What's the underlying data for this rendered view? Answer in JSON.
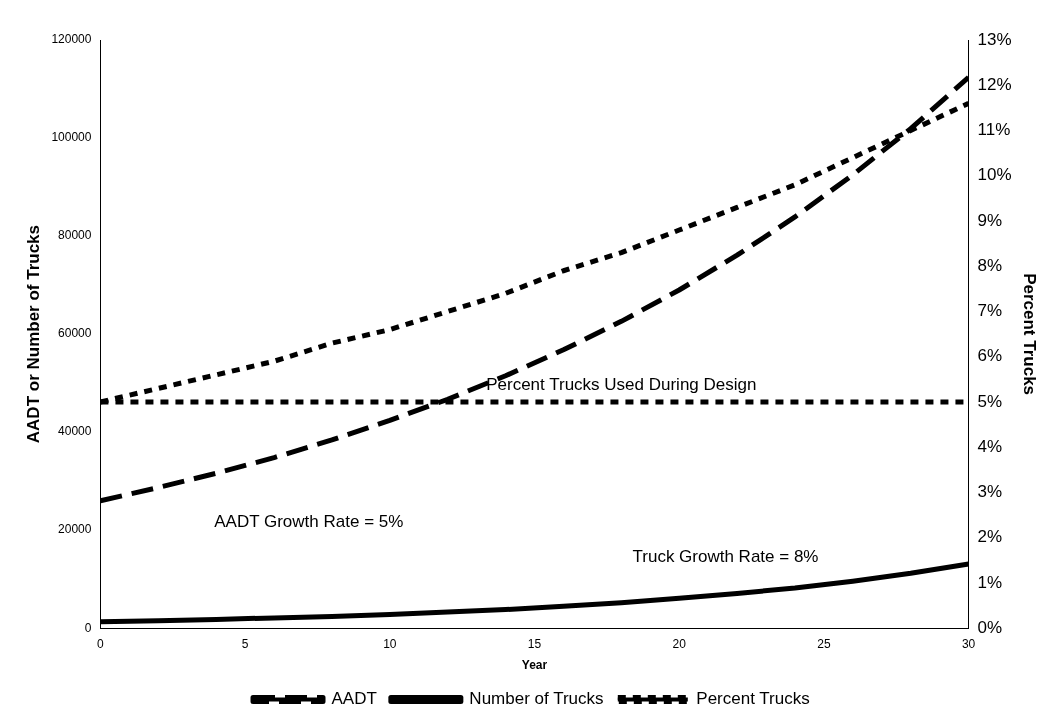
{
  "chart_data": {
    "type": "line",
    "xlabel": "Year",
    "ylabel": "AADT or Number of Trucks",
    "y2label": "Percent Trucks",
    "x": [
      0,
      2,
      4,
      6,
      8,
      10,
      12,
      14,
      16,
      18,
      20,
      22,
      24,
      26,
      28,
      30
    ],
    "series": [
      {
        "name": "AADT",
        "color": "#000000",
        "line_style": "dashed",
        "values": [
          26000,
          28700,
          31600,
          34800,
          38400,
          42400,
          46700,
          51500,
          56800,
          62600,
          69000,
          76100,
          83900,
          92500,
          101900,
          112400
        ]
      },
      {
        "name": "Number of Trucks",
        "color": "#000000",
        "line_style": "solid",
        "values": [
          1300,
          1500,
          1800,
          2100,
          2400,
          2800,
          3300,
          3800,
          4500,
          5200,
          6100,
          7100,
          8200,
          9600,
          11200,
          13100
        ]
      },
      {
        "name": "Percent Trucks",
        "color": "#000000",
        "line_style": "dotted",
        "axis": "y2",
        "values": [
          5.0,
          5.3,
          5.6,
          5.9,
          6.3,
          6.6,
          7.0,
          7.4,
          7.9,
          8.3,
          8.8,
          9.3,
          9.8,
          10.4,
          11.0,
          11.6
        ]
      }
    ],
    "xlim": [
      0,
      30
    ],
    "xticks": [
      0,
      5,
      10,
      15,
      20,
      25,
      30
    ],
    "ylim": [
      0,
      120000
    ],
    "yticks": [
      0,
      20000,
      40000,
      60000,
      80000,
      100000,
      120000
    ],
    "y2lim": [
      0,
      13
    ],
    "y2ticks": [
      {
        "value": 0,
        "label": "0%"
      },
      {
        "value": 1,
        "label": "1%"
      },
      {
        "value": 2,
        "label": "2%"
      },
      {
        "value": 3,
        "label": "3%"
      },
      {
        "value": 4,
        "label": "4%"
      },
      {
        "value": 5,
        "label": "5%"
      },
      {
        "value": 6,
        "label": "6%"
      },
      {
        "value": 7,
        "label": "7%"
      },
      {
        "value": 8,
        "label": "8%"
      },
      {
        "value": 9,
        "label": "9%"
      },
      {
        "value": 10,
        "label": "10%"
      },
      {
        "value": 11,
        "label": "11%"
      },
      {
        "value": 12,
        "label": "12%"
      },
      {
        "value": 13,
        "label": "13%"
      }
    ],
    "ref_lines": [
      {
        "axis": "y2",
        "value": 5,
        "label": "Percent Trucks Used During Design",
        "color": "#000000",
        "line_style": "dotted"
      }
    ],
    "annotations": [
      "AADT Growth Rate = 5%",
      "Truck Growth Rate = 8%"
    ],
    "grid": false,
    "legend": "bottom",
    "marker": "none"
  }
}
